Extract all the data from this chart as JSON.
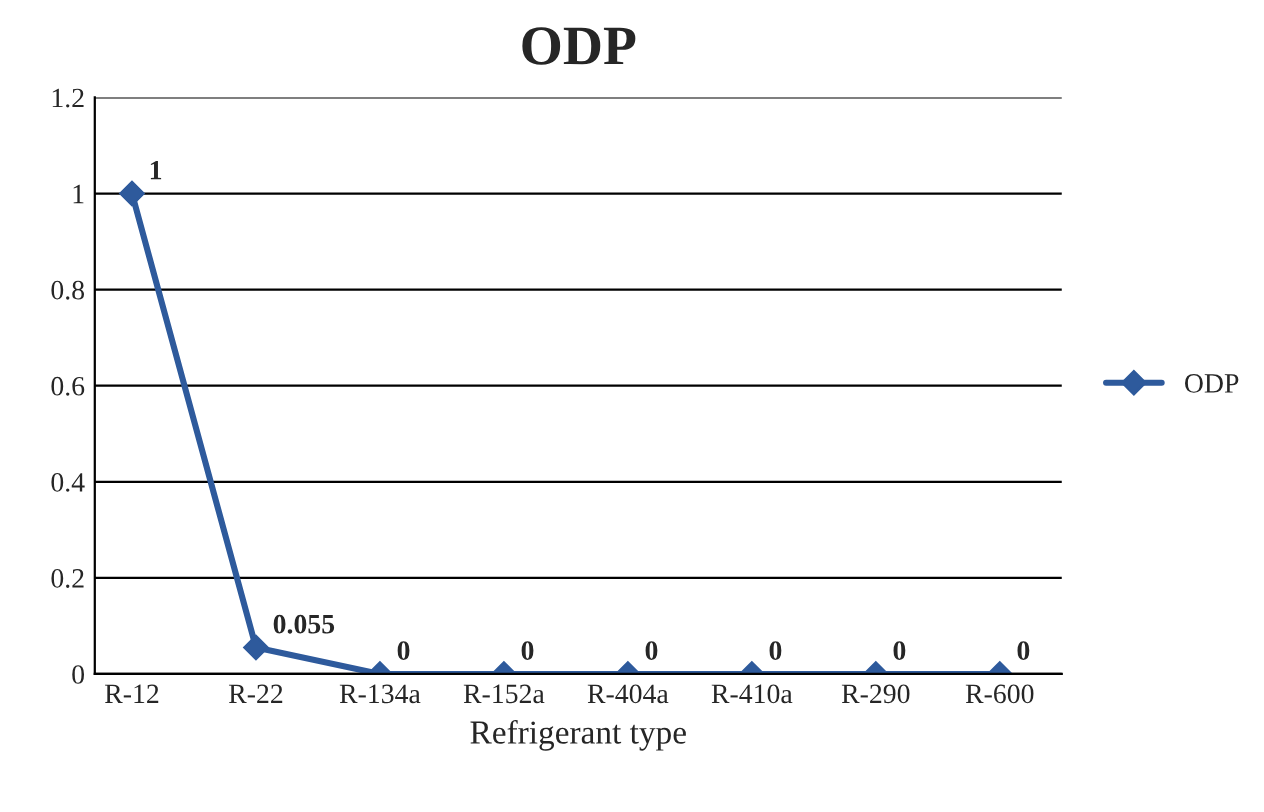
{
  "chart_data": {
    "type": "line",
    "title": "ODP",
    "xlabel": "Refrigerant type",
    "categories": [
      "R-12",
      "R-22",
      "R-134a",
      "R-152a",
      "R-404a",
      "R-410a",
      "R-290",
      "R-600"
    ],
    "series": [
      {
        "name": "ODP",
        "color": "#2e5a9c",
        "values": [
          1,
          0.055,
          0,
          0,
          0,
          0,
          0,
          0
        ]
      }
    ],
    "ylim": [
      0,
      1.2
    ],
    "yticks": [
      0,
      0.2,
      0.4,
      0.6,
      0.8,
      1,
      1.2
    ],
    "grid": "y",
    "legend": "right",
    "marker": "diamond",
    "line_style": "solid",
    "data_labels": true
  }
}
